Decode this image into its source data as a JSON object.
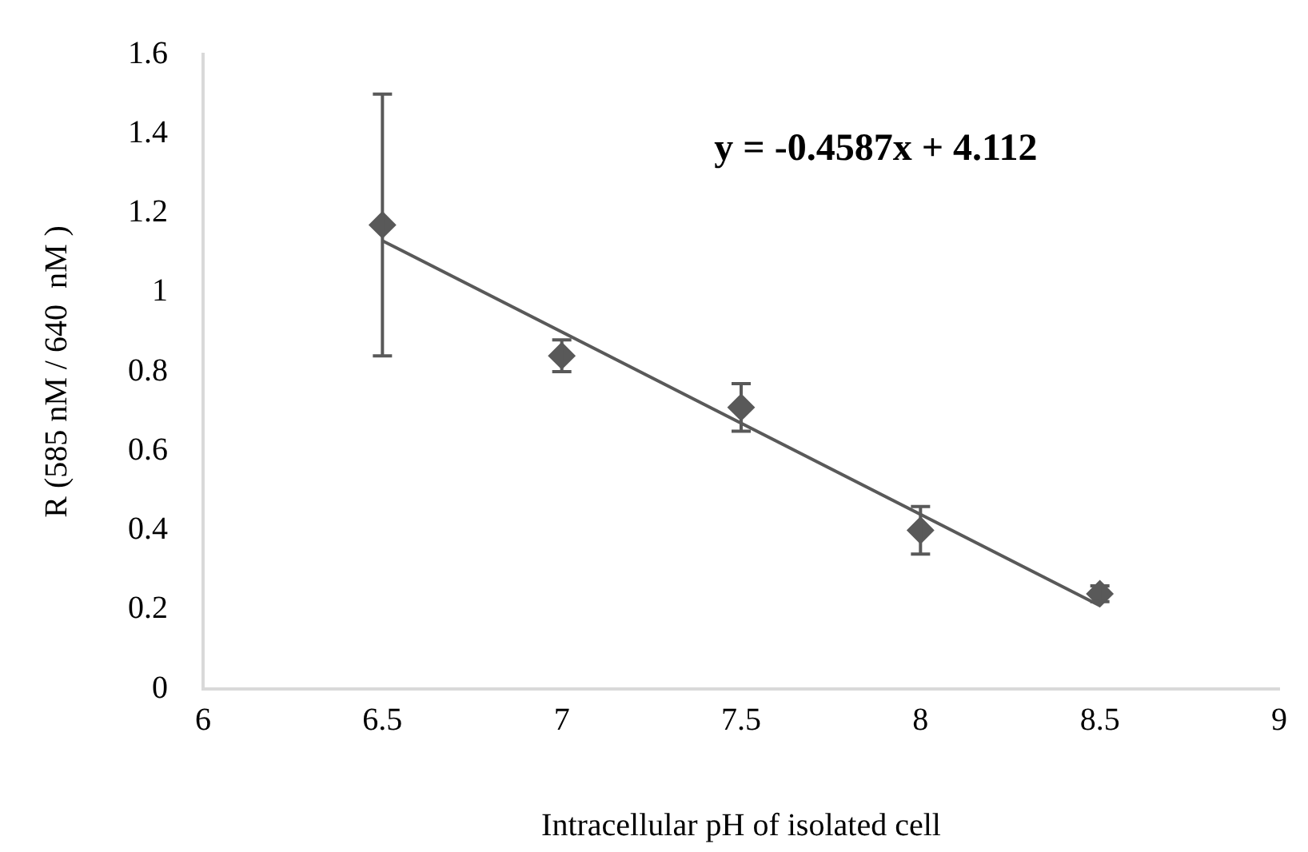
{
  "chart_data": {
    "type": "scatter",
    "xlabel": "Intracellular pH of isolated cell",
    "ylabel": "R (585 nM / 640  nM )",
    "annotations": [
      "y = -0.4587x + 4.112"
    ],
    "x": [
      6.5,
      7,
      7.5,
      8,
      8.5
    ],
    "series": [
      {
        "type": "scatter",
        "color": "#595959",
        "values": [
          1.17,
          0.84,
          0.71,
          0.4,
          0.24
        ],
        "errors": [
          0.33,
          0.04,
          0.06,
          0.06,
          0.02
        ],
        "marker": "diamond"
      },
      {
        "type": "line",
        "color": "#595959",
        "x": [
          6.5,
          8.5
        ],
        "values": [
          1.13,
          0.21
        ],
        "marker": "none"
      }
    ],
    "xlim": [
      6,
      9
    ],
    "xticks": [
      6,
      6.5,
      7,
      7.5,
      8,
      8.5,
      9
    ],
    "ylim": [
      0,
      1.6
    ],
    "yticks": [
      0,
      0.2,
      0.4,
      0.6,
      0.8,
      1,
      1.2,
      1.4,
      1.6
    ],
    "grid": false,
    "legend": false
  }
}
